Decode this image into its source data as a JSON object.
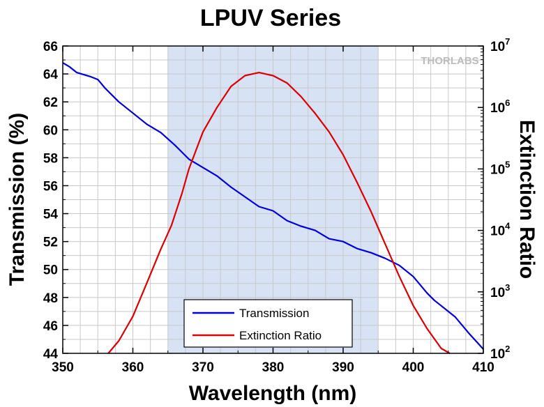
{
  "chart_data": {
    "type": "line",
    "title": "LPUV Series",
    "xlabel": "Wavelength (nm)",
    "ylabel": "Transmission (%)",
    "y2label": "Extinction Ratio",
    "xlim": [
      350,
      410
    ],
    "ylim": [
      44,
      66
    ],
    "y2lim": [
      100,
      10000000
    ],
    "y2scale": "log",
    "xticks": [
      "350",
      "360",
      "370",
      "380",
      "390",
      "400",
      "410"
    ],
    "yticks": [
      "44",
      "46",
      "48",
      "50",
      "52",
      "54",
      "56",
      "58",
      "60",
      "62",
      "64",
      "66"
    ],
    "y2ticks": [
      {
        "base": "10",
        "exp": "2",
        "value": 100
      },
      {
        "base": "10",
        "exp": "3",
        "value": 1000
      },
      {
        "base": "10",
        "exp": "4",
        "value": 10000
      },
      {
        "base": "10",
        "exp": "5",
        "value": 100000
      },
      {
        "base": "10",
        "exp": "6",
        "value": 1000000
      },
      {
        "base": "10",
        "exp": "7",
        "value": 10000000
      }
    ],
    "grid": true,
    "shaded_region": [
      365,
      395
    ],
    "legend_position": "bottom-center",
    "watermark": "THORLABS",
    "series": [
      {
        "name": "Transmission",
        "axis": "left",
        "color": "#0000dd",
        "x": [
          350,
          351,
          352,
          354,
          355,
          356,
          358,
          360,
          362,
          364,
          366,
          368,
          370,
          372,
          374,
          376,
          378,
          380,
          382,
          384,
          386,
          388,
          390,
          392,
          394,
          396,
          398,
          400,
          402,
          403,
          404,
          406,
          408,
          410
        ],
        "y": [
          64.8,
          64.5,
          64.1,
          63.8,
          63.6,
          63.0,
          62.0,
          61.2,
          60.4,
          59.8,
          58.9,
          57.9,
          57.3,
          56.7,
          55.9,
          55.2,
          54.5,
          54.2,
          53.5,
          53.1,
          52.8,
          52.2,
          52.0,
          51.5,
          51.2,
          50.8,
          50.3,
          49.5,
          48.3,
          47.8,
          47.4,
          46.6,
          45.4,
          44.3
        ]
      },
      {
        "name": "Extinction Ratio",
        "axis": "right",
        "color": "#dd0000",
        "x": [
          356.5,
          358,
          360,
          362,
          364,
          365.5,
          367,
          368,
          370,
          372,
          374,
          376,
          378,
          380,
          382,
          384,
          386,
          388,
          390,
          392,
          394,
          396,
          398,
          400,
          402,
          404,
          405.2
        ],
        "y": [
          100,
          160,
          400,
          1400,
          5000,
          12000,
          40000,
          100000,
          400000,
          1000000,
          2200000,
          3300000,
          3700000,
          3300000,
          2500000,
          1500000,
          800000,
          400000,
          170000,
          60000,
          20000,
          6000,
          1800,
          600,
          250,
          120,
          100
        ]
      }
    ]
  }
}
